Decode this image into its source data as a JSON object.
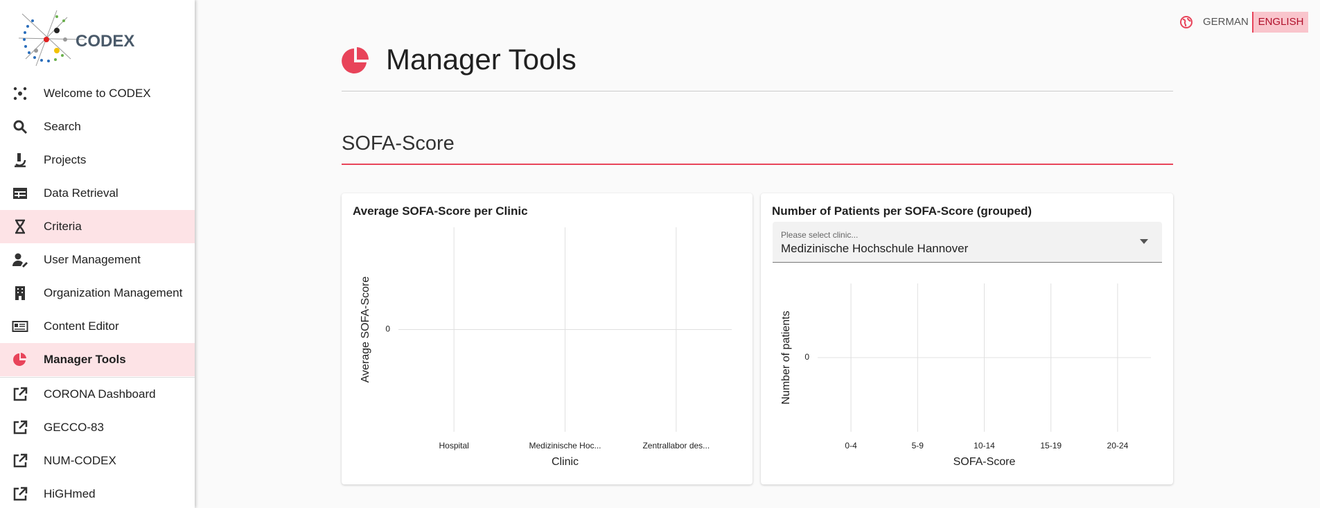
{
  "header": {
    "language_options": [
      "GERMAN",
      "ENGLISH"
    ],
    "page_title": "Manager Tools",
    "section_title": "SOFA-Score"
  },
  "sidebar": {
    "logo_text": "CODEX",
    "items": [
      "Welcome to CODEX",
      "Search",
      "Projects",
      "Data Retrieval",
      "Criteria",
      "User Management",
      "Organization Management",
      "Content Editor",
      "Manager Tools"
    ],
    "external_links": [
      "CORONA Dashboard",
      "GECCO-83",
      "NUM-CODEX",
      "HiGHmed"
    ]
  },
  "charts": [
    {
      "type": "bar",
      "title": "Average SOFA-Score per Clinic",
      "categories": [
        "Hospital",
        "Medizinische Hoc...",
        "Zentrallabor des..."
      ],
      "xlabel": "Clinic",
      "ylabel": "Average SOFA-Score",
      "ylim": [
        -1,
        1
      ],
      "yticks": [
        0
      ],
      "grid": true
    },
    {
      "type": "bar",
      "title": "Number of Patients per SOFA-Score (grouped)",
      "select_label": "Please select clinic...",
      "selected": "Medizinische Hochschule Hannover",
      "categories": [
        "0-4",
        "5-9",
        "10-14",
        "15-19",
        "20-24"
      ],
      "xlabel": "SOFA-Score",
      "ylabel": "Number of patients",
      "ylim": [
        -1,
        1
      ],
      "yticks": [
        0
      ],
      "grid": true
    }
  ]
}
